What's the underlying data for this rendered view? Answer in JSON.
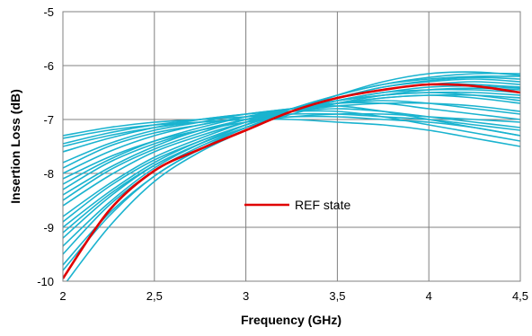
{
  "chart_data": {
    "type": "line",
    "title": "",
    "xlabel": "Frequency (GHz)",
    "ylabel": "Insertion Loss (dB)",
    "xlim": [
      2,
      4.5
    ],
    "ylim": [
      -10,
      -5
    ],
    "x_ticks": [
      2,
      2.5,
      3,
      3.5,
      4,
      4.5
    ],
    "x_tick_labels": [
      "2",
      "2,5",
      "3",
      "3,5",
      "4",
      "4,5"
    ],
    "y_ticks": [
      -10,
      -9,
      -8,
      -7,
      -6,
      -5
    ],
    "y_tick_labels": [
      "-10",
      "-9",
      "-8",
      "-7",
      "-6",
      "-5"
    ],
    "grid": true,
    "legend": {
      "placement": "center",
      "entries": [
        "REF state"
      ]
    },
    "colors": {
      "ref": "#e00000",
      "states": "#1ab3cf",
      "grid": "#808080",
      "frame": "#808080"
    },
    "x": [
      2,
      2.25,
      2.5,
      2.75,
      3,
      3.25,
      3.5,
      3.75,
      4,
      4.25,
      4.5
    ],
    "series": [
      {
        "name": "REF state",
        "values": [
          -9.95,
          -8.7,
          -7.95,
          -7.55,
          -7.2,
          -6.85,
          -6.6,
          -6.45,
          -6.35,
          -6.38,
          -6.5
        ]
      },
      {
        "values": [
          -7.3,
          -7.15,
          -7.05,
          -7.0,
          -6.95,
          -6.9,
          -6.9,
          -6.95,
          -7.0,
          -7.1,
          -7.2
        ]
      },
      {
        "values": [
          -7.45,
          -7.25,
          -7.1,
          -7.0,
          -6.9,
          -6.85,
          -6.85,
          -6.95,
          -7.1,
          -7.25,
          -7.4
        ]
      },
      {
        "values": [
          -7.6,
          -7.35,
          -7.15,
          -7.0,
          -6.9,
          -6.8,
          -6.75,
          -6.85,
          -7.0,
          -7.15,
          -7.3
        ]
      },
      {
        "values": [
          -7.8,
          -7.45,
          -7.2,
          -7.05,
          -6.9,
          -6.8,
          -6.7,
          -6.7,
          -6.8,
          -6.9,
          -7.0
        ]
      },
      {
        "values": [
          -8.0,
          -7.6,
          -7.3,
          -7.1,
          -6.95,
          -6.8,
          -6.7,
          -6.65,
          -6.7,
          -6.8,
          -6.9
        ]
      },
      {
        "values": [
          -8.2,
          -7.75,
          -7.4,
          -7.15,
          -6.95,
          -6.8,
          -6.7,
          -6.6,
          -6.55,
          -6.6,
          -6.7
        ]
      },
      {
        "values": [
          -8.4,
          -7.9,
          -7.5,
          -7.2,
          -7.0,
          -6.8,
          -6.65,
          -6.55,
          -6.5,
          -6.5,
          -6.55
        ]
      },
      {
        "values": [
          -8.6,
          -8.05,
          -7.6,
          -7.3,
          -7.05,
          -6.85,
          -6.7,
          -6.6,
          -6.55,
          -6.55,
          -6.6
        ]
      },
      {
        "values": [
          -8.8,
          -8.2,
          -7.7,
          -7.35,
          -7.05,
          -6.8,
          -6.6,
          -6.45,
          -6.35,
          -6.3,
          -6.35
        ]
      },
      {
        "values": [
          -9.0,
          -8.35,
          -7.8,
          -7.4,
          -7.1,
          -6.85,
          -6.65,
          -6.5,
          -6.45,
          -6.45,
          -6.5
        ]
      },
      {
        "values": [
          -9.2,
          -8.45,
          -7.85,
          -7.45,
          -7.1,
          -6.8,
          -6.55,
          -6.35,
          -6.25,
          -6.2,
          -6.2
        ]
      },
      {
        "values": [
          -9.5,
          -8.6,
          -7.95,
          -7.5,
          -7.15,
          -6.85,
          -6.6,
          -6.4,
          -6.3,
          -6.25,
          -6.3
        ]
      },
      {
        "values": [
          -9.8,
          -8.8,
          -8.05,
          -7.55,
          -7.15,
          -6.85,
          -6.6,
          -6.45,
          -6.35,
          -6.35,
          -6.4
        ]
      },
      {
        "values": [
          -10.1,
          -9.0,
          -8.15,
          -7.6,
          -7.2,
          -6.85,
          -6.55,
          -6.3,
          -6.15,
          -6.12,
          -6.18
        ]
      },
      {
        "values": [
          -7.5,
          -7.3,
          -7.15,
          -7.05,
          -7.0,
          -7.0,
          -7.05,
          -7.1,
          -7.2,
          -7.35,
          -7.5
        ]
      },
      {
        "values": [
          -7.9,
          -7.5,
          -7.25,
          -7.1,
          -6.95,
          -6.85,
          -6.8,
          -6.85,
          -6.95,
          -7.05,
          -7.15
        ]
      },
      {
        "values": [
          -8.3,
          -7.8,
          -7.45,
          -7.2,
          -7.0,
          -6.85,
          -6.75,
          -6.7,
          -6.7,
          -6.75,
          -6.85
        ]
      },
      {
        "values": [
          -8.9,
          -8.25,
          -7.75,
          -7.4,
          -7.1,
          -6.85,
          -6.65,
          -6.5,
          -6.4,
          -6.38,
          -6.42
        ]
      },
      {
        "values": [
          -9.35,
          -8.55,
          -7.9,
          -7.45,
          -7.1,
          -6.8,
          -6.55,
          -6.35,
          -6.22,
          -6.15,
          -6.15
        ]
      },
      {
        "values": [
          -7.35,
          -7.2,
          -7.1,
          -7.05,
          -7.0,
          -6.95,
          -6.95,
          -7.0,
          -7.05,
          -7.15,
          -7.3
        ]
      },
      {
        "values": [
          -8.1,
          -7.7,
          -7.4,
          -7.2,
          -7.05,
          -6.95,
          -6.9,
          -6.9,
          -6.95,
          -7.0,
          -7.05
        ]
      },
      {
        "values": [
          -8.5,
          -7.95,
          -7.55,
          -7.25,
          -7.0,
          -6.8,
          -6.65,
          -6.55,
          -6.5,
          -6.55,
          -6.65
        ]
      },
      {
        "values": [
          -9.1,
          -8.4,
          -7.85,
          -7.45,
          -7.15,
          -6.9,
          -6.7,
          -6.55,
          -6.45,
          -6.42,
          -6.45
        ]
      },
      {
        "values": [
          -9.7,
          -8.75,
          -8.05,
          -7.55,
          -7.15,
          -6.85,
          -6.6,
          -6.4,
          -6.28,
          -6.22,
          -6.25
        ]
      }
    ]
  }
}
